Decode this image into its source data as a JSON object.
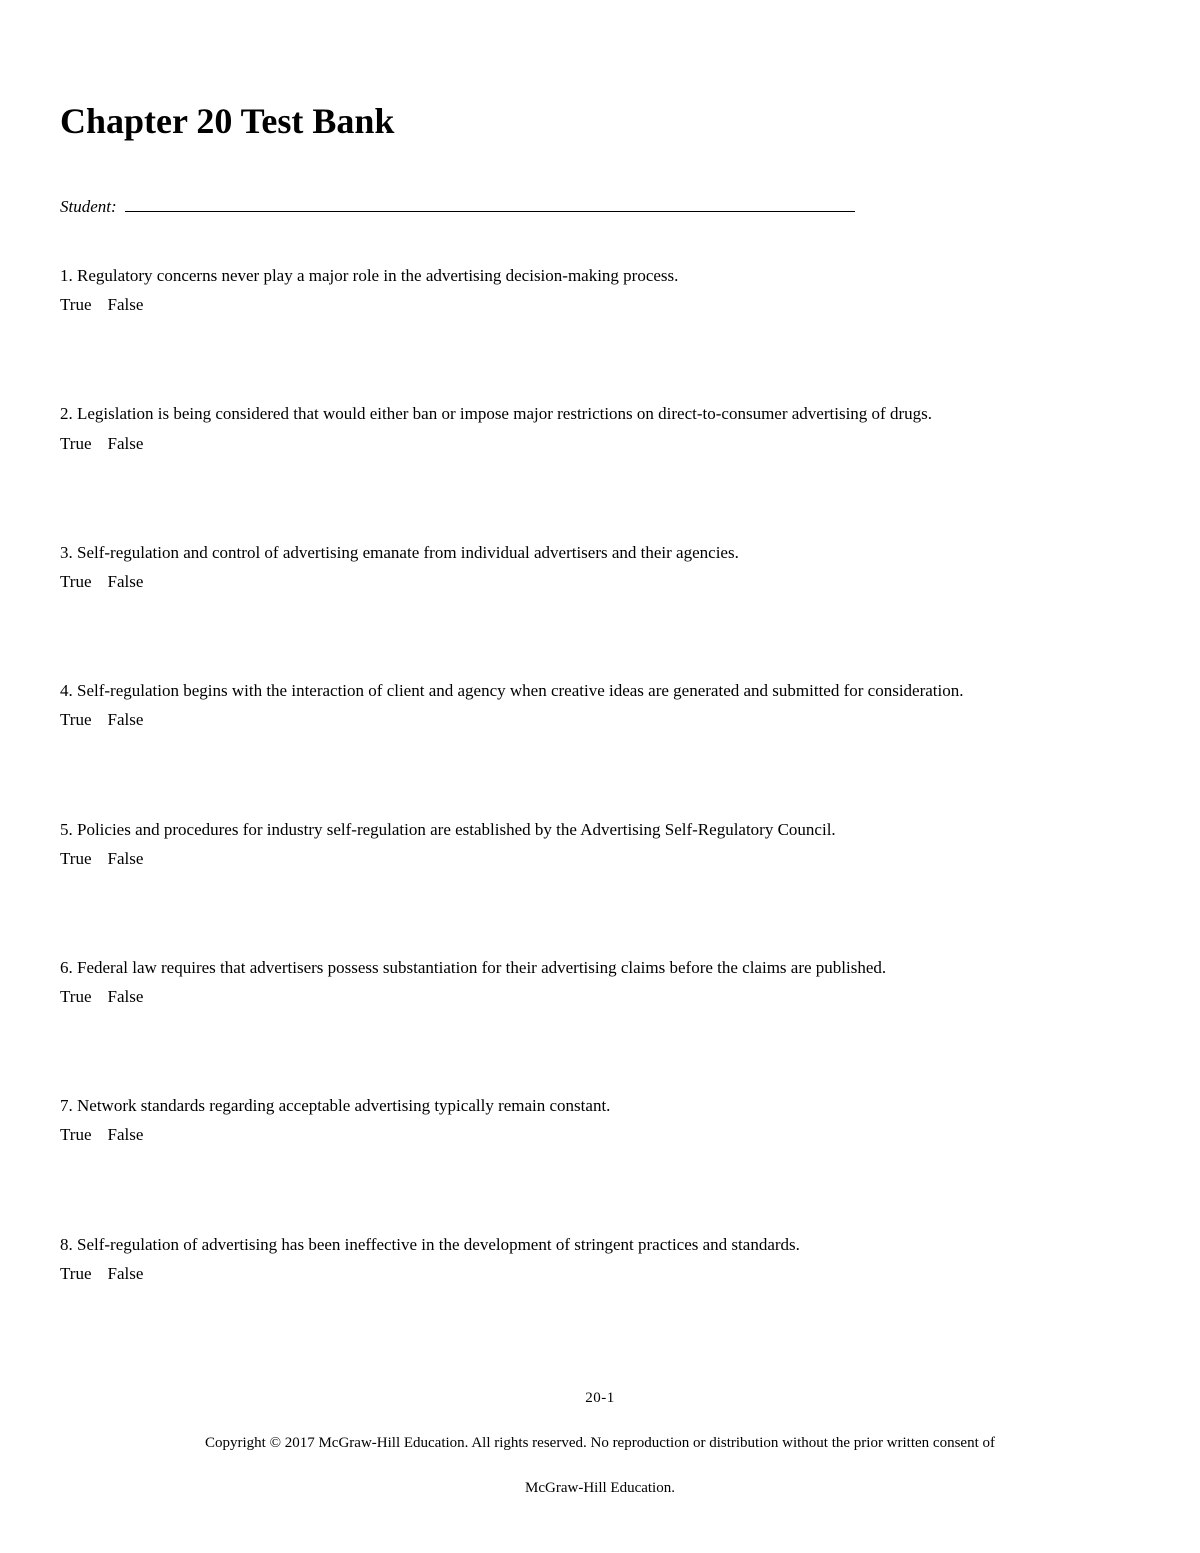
{
  "title": "Chapter 20 Test Bank",
  "student_label": "Student:",
  "tf_true": "True",
  "tf_false": "False",
  "questions": [
    {
      "number": "1",
      "text": "Regulatory concerns never play a major role in the advertising decision-making process."
    },
    {
      "number": "2",
      "text": "Legislation is being considered that would either ban or impose major restrictions on direct-to-consumer advertising of drugs."
    },
    {
      "number": "3",
      "text": "Self-regulation and control of advertising emanate from individual advertisers and their agencies."
    },
    {
      "number": "4",
      "text": "Self-regulation begins with the interaction of client and agency when creative ideas are generated and submitted for consideration."
    },
    {
      "number": "5",
      "text": "Policies and procedures for industry self-regulation are established by the Advertising Self-Regulatory Council."
    },
    {
      "number": "6",
      "text": "Federal law requires that advertisers possess substantiation for their advertising claims before the claims are published."
    },
    {
      "number": "7",
      "text": "Network standards regarding acceptable advertising typically remain constant."
    },
    {
      "number": "8",
      "text": "Self-regulation of advertising has been ineffective in the development of stringent practices and standards."
    }
  ],
  "footer": {
    "page_number": "20-1",
    "copyright_line1": "Copyright © 2017 McGraw-Hill Education. All rights reserved. No reproduction or distribution without the prior written consent of",
    "copyright_line2": "McGraw-Hill Education."
  }
}
